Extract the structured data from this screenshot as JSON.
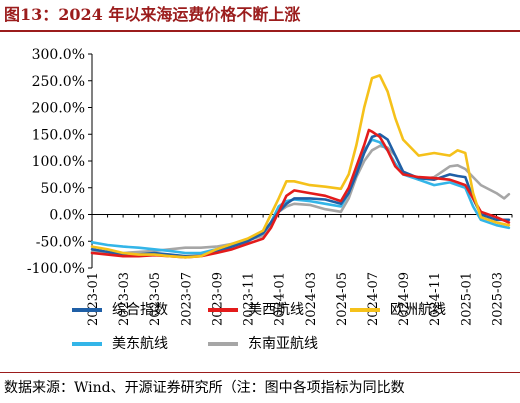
{
  "title": "图13：2024 年以来海运费价格不断上涨",
  "source": "数据来源：Wind、开源证券研究所（注：图中各项指标为同比数",
  "chart_data": {
    "type": "line",
    "ylim": [
      -100,
      300
    ],
    "yticks": [
      300,
      250,
      200,
      150,
      100,
      50,
      0,
      -50,
      -100
    ],
    "ytick_labels": [
      "300.0%",
      "250.0%",
      "200.0%",
      "150.0%",
      "100.0%",
      "50.0%",
      "0.0%",
      "-50.0%",
      "-100.0%"
    ],
    "xlim": [
      0,
      27
    ],
    "xticks": [
      0,
      2,
      4,
      6,
      8,
      10,
      12,
      14,
      16,
      18,
      20,
      22,
      24,
      26
    ],
    "xtick_labels": [
      "2023-01",
      "2023-03",
      "2023-05",
      "2023-07",
      "2023-09",
      "2023-11",
      "2024-01",
      "2024-03",
      "2024-05",
      "2024-07",
      "2024-09",
      "2024-11",
      "2025-01",
      "2025-03"
    ],
    "grid": false,
    "legend_position": "bottom",
    "series": [
      {
        "name": "综合指数",
        "color": "#1f5fa6",
        "x": [
          0,
          1,
          2,
          3,
          4,
          5,
          6,
          7,
          8,
          9,
          10,
          11,
          11.5,
          12,
          12.5,
          13,
          14,
          15,
          16,
          16.5,
          17,
          17.5,
          18,
          18.5,
          19,
          19.5,
          20,
          21,
          22,
          23,
          23.5,
          24,
          24.5,
          25,
          26,
          26.8
        ],
        "y": [
          -65,
          -70,
          -75,
          -75,
          -72,
          -75,
          -78,
          -77,
          -70,
          -60,
          -50,
          -35,
          -15,
          5,
          20,
          30,
          30,
          28,
          20,
          40,
          75,
          115,
          145,
          150,
          140,
          110,
          80,
          68,
          65,
          75,
          72,
          70,
          30,
          0,
          -10,
          -10
        ]
      },
      {
        "name": "美西航线",
        "color": "#e31b1b",
        "x": [
          0,
          1,
          2,
          3,
          4,
          5,
          6,
          7,
          8,
          9,
          10,
          11,
          11.5,
          12,
          12.5,
          13,
          14,
          15,
          16,
          16.5,
          17,
          17.5,
          17.8,
          18,
          18.5,
          19,
          19.5,
          20,
          21,
          22,
          23,
          23.5,
          24,
          24.5,
          25,
          26,
          26.8
        ],
        "y": [
          -72,
          -75,
          -78,
          -78,
          -76,
          -78,
          -80,
          -78,
          -72,
          -65,
          -55,
          -45,
          -25,
          5,
          35,
          45,
          40,
          35,
          25,
          50,
          90,
          130,
          158,
          155,
          145,
          120,
          90,
          75,
          70,
          68,
          65,
          60,
          55,
          30,
          5,
          -5,
          -15
        ]
      },
      {
        "name": "欧洲航线",
        "color": "#f5c11a",
        "x": [
          0,
          1,
          2,
          3,
          4,
          5,
          6,
          7,
          8,
          9,
          10,
          11,
          11.5,
          12,
          12.5,
          13,
          14,
          15,
          16,
          16.5,
          17,
          17.5,
          18,
          18.5,
          19,
          19.5,
          20,
          21,
          22,
          23,
          23.5,
          24,
          24.5,
          25,
          26,
          26.8
        ],
        "y": [
          -60,
          -65,
          -72,
          -75,
          -75,
          -78,
          -80,
          -78,
          -65,
          -55,
          -45,
          -30,
          0,
          30,
          62,
          62,
          55,
          52,
          48,
          75,
          130,
          200,
          255,
          260,
          230,
          180,
          140,
          110,
          115,
          110,
          120,
          115,
          40,
          -5,
          -15,
          -20
        ]
      },
      {
        "name": "美东航线",
        "color": "#33b5e8",
        "x": [
          0,
          1,
          2,
          3,
          4,
          5,
          6,
          7,
          8,
          9,
          10,
          11,
          11.5,
          12,
          12.5,
          13,
          14,
          15,
          16,
          16.5,
          17,
          17.5,
          18,
          18.5,
          19,
          19.5,
          20,
          21,
          22,
          23,
          23.5,
          24,
          24.5,
          25,
          26,
          26.8
        ],
        "y": [
          -52,
          -57,
          -60,
          -62,
          -65,
          -68,
          -72,
          -72,
          -65,
          -55,
          -48,
          -35,
          -15,
          15,
          25,
          28,
          25,
          20,
          15,
          40,
          80,
          120,
          140,
          135,
          120,
          95,
          75,
          65,
          55,
          60,
          55,
          50,
          15,
          -10,
          -20,
          -25
        ]
      },
      {
        "name": "东南亚航线",
        "color": "#a6a6a6",
        "x": [
          0,
          1,
          2,
          3,
          4,
          5,
          6,
          7,
          8,
          9,
          10,
          11,
          11.5,
          12,
          12.5,
          13,
          14,
          15,
          16,
          16.5,
          17,
          17.5,
          18,
          18.5,
          19,
          19.5,
          20,
          21,
          22,
          23,
          23.5,
          24,
          24.5,
          25,
          26,
          26.5,
          26.8
        ],
        "y": [
          -70,
          -72,
          -72,
          -70,
          -68,
          -65,
          -62,
          -62,
          -60,
          -55,
          -48,
          -40,
          -20,
          5,
          15,
          20,
          18,
          10,
          5,
          30,
          70,
          100,
          120,
          128,
          125,
          110,
          80,
          65,
          70,
          90,
          92,
          85,
          70,
          55,
          40,
          30,
          38
        ]
      }
    ]
  }
}
